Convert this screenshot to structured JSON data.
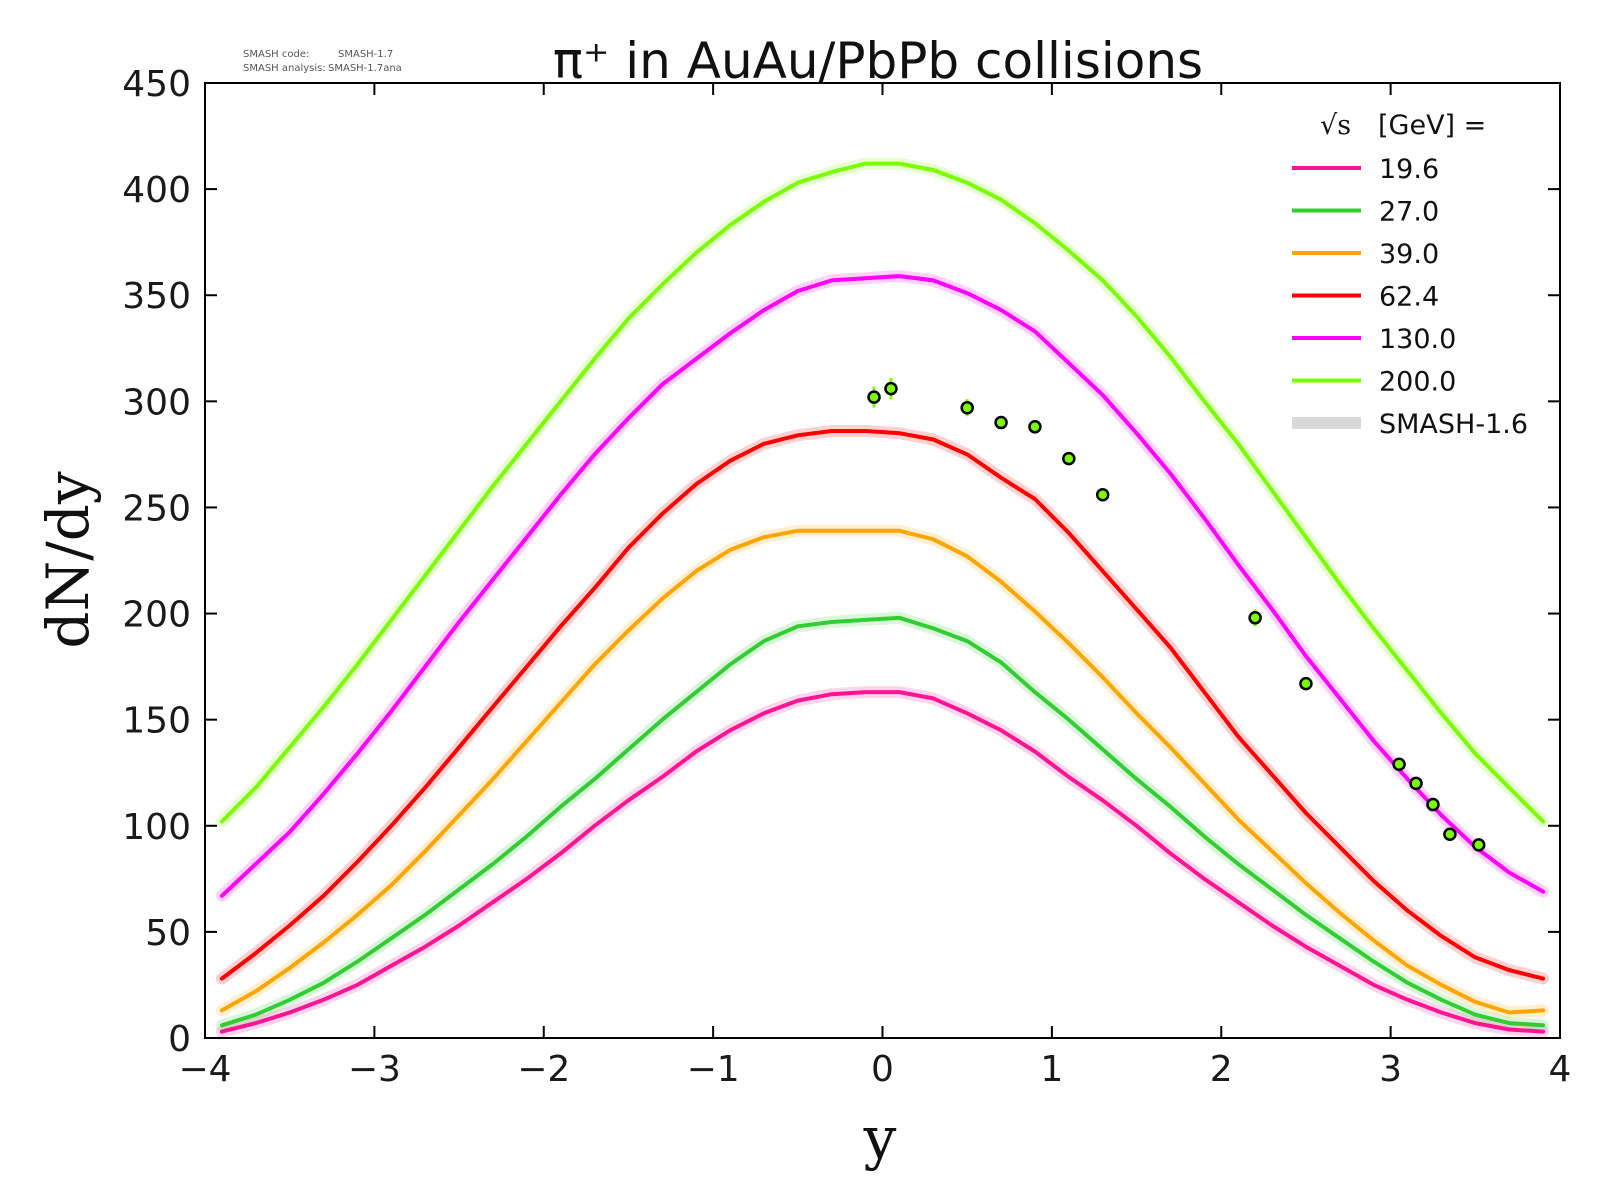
{
  "chart_data": {
    "type": "line",
    "title": "π⁺ in AuAu/PbPb collisions",
    "xlabel": "y",
    "ylabel": "dN/dy",
    "xlim": [
      -4,
      4
    ],
    "ylim": [
      0,
      450
    ],
    "xticks": [
      "−4",
      "−3",
      "−2",
      "−1",
      "0",
      "1",
      "2",
      "3",
      "4"
    ],
    "yticks": [
      "0",
      "50",
      "100",
      "150",
      "200",
      "250",
      "300",
      "350",
      "400",
      "450"
    ],
    "grid": false,
    "legend_position": "top-right",
    "legend_title_sqrt": "√s",
    "legend_title_unit": "[GeV] =",
    "version_info": {
      "code_label": "SMASH code:",
      "code_value": "SMASH-1.7",
      "analysis_label": "SMASH analysis:",
      "analysis_value": "SMASH-1.7ana"
    },
    "x": [
      -3.9,
      -3.7,
      -3.5,
      -3.3,
      -3.1,
      -2.9,
      -2.7,
      -2.5,
      -2.3,
      -2.1,
      -1.9,
      -1.7,
      -1.5,
      -1.3,
      -1.1,
      -0.9,
      -0.7,
      -0.5,
      -0.3,
      -0.1,
      0.1,
      0.3,
      0.5,
      0.7,
      0.9,
      1.1,
      1.3,
      1.5,
      1.7,
      1.9,
      2.1,
      2.3,
      2.5,
      2.7,
      2.9,
      3.1,
      3.3,
      3.5,
      3.7,
      3.9
    ],
    "series": [
      {
        "name": "19.6",
        "color": "#ff1493",
        "values": [
          3,
          7,
          12,
          18,
          25,
          34,
          43,
          53,
          64,
          75,
          87,
          100,
          112,
          123,
          135,
          145,
          153,
          159,
          162,
          163,
          163,
          160,
          153,
          145,
          135,
          123,
          112,
          100,
          87,
          75,
          64,
          53,
          43,
          34,
          25,
          18,
          12,
          7,
          4,
          3
        ]
      },
      {
        "name": "27.0",
        "color": "#32cd32",
        "values": [
          6,
          11,
          18,
          26,
          36,
          47,
          58,
          70,
          82,
          95,
          109,
          122,
          136,
          150,
          163,
          176,
          187,
          194,
          196,
          197,
          198,
          193,
          187,
          177,
          163,
          150,
          136,
          122,
          109,
          95,
          82,
          70,
          58,
          47,
          36,
          26,
          18,
          11,
          7,
          6
        ]
      },
      {
        "name": "39.0",
        "color": "#ffa500",
        "values": [
          13,
          22,
          33,
          45,
          58,
          72,
          88,
          105,
          122,
          140,
          158,
          176,
          192,
          207,
          220,
          230,
          236,
          239,
          239,
          239,
          239,
          235,
          227,
          215,
          201,
          186,
          170,
          153,
          137,
          120,
          103,
          88,
          73,
          59,
          46,
          34,
          25,
          17,
          12,
          13
        ]
      },
      {
        "name": "62.4",
        "color": "#ff0000",
        "values": [
          28,
          40,
          53,
          67,
          83,
          100,
          118,
          137,
          156,
          175,
          194,
          212,
          231,
          247,
          261,
          272,
          280,
          284,
          286,
          286,
          285,
          282,
          275,
          264,
          254,
          238,
          220,
          202,
          184,
          163,
          142,
          124,
          106,
          90,
          74,
          60,
          48,
          38,
          32,
          28
        ]
      },
      {
        "name": "130.0",
        "color": "#ff00ff",
        "values": [
          67,
          82,
          97,
          115,
          134,
          154,
          175,
          196,
          216,
          236,
          256,
          275,
          292,
          308,
          320,
          332,
          343,
          352,
          357,
          358,
          359,
          357,
          351,
          343,
          333,
          318,
          303,
          285,
          266,
          245,
          223,
          202,
          180,
          160,
          140,
          122,
          105,
          90,
          78,
          69
        ]
      },
      {
        "name": "200.0",
        "color": "#7cfc00",
        "values": [
          102,
          118,
          137,
          156,
          176,
          197,
          218,
          239,
          260,
          280,
          300,
          320,
          339,
          355,
          370,
          383,
          394,
          403,
          408,
          412,
          412,
          409,
          403,
          395,
          384,
          371,
          357,
          340,
          321,
          300,
          280,
          258,
          236,
          214,
          193,
          173,
          153,
          134,
          118,
          102
        ]
      }
    ],
    "reference_label": "SMASH-1.6",
    "reference_color": "#d9d9d9",
    "measured_points": {
      "fill": "#7cfc00",
      "x": [
        -0.05,
        0.05,
        0.5,
        0.7,
        0.9,
        1.1,
        1.3,
        2.2,
        2.5,
        3.05,
        3.15,
        3.25,
        3.35,
        3.52
      ],
      "y": [
        302,
        306,
        297,
        290,
        288,
        273,
        256,
        198,
        167,
        129,
        120,
        110,
        96,
        91
      ],
      "err": [
        5,
        5,
        4,
        3,
        3,
        3,
        3,
        4,
        3,
        3,
        3,
        3,
        3,
        3
      ]
    }
  }
}
